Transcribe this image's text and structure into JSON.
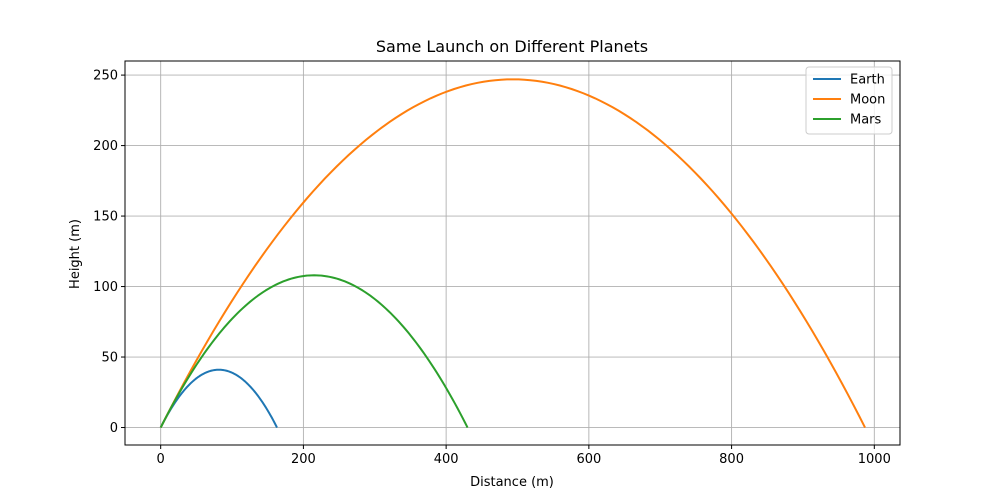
{
  "chart_data": {
    "type": "line",
    "title": "Same Launch on Different Planets",
    "xlabel": "Distance (m)",
    "ylabel": "Height (m)",
    "xlim": [
      -50,
      1036
    ],
    "ylim": [
      -12.4,
      260
    ],
    "xticks": [
      0,
      200,
      400,
      600,
      800,
      1000
    ],
    "yticks": [
      0,
      50,
      100,
      150,
      200,
      250
    ],
    "xtick_labels": [
      "0",
      "200",
      "400",
      "600",
      "800",
      "1000"
    ],
    "ytick_labels": [
      "0",
      "50",
      "100",
      "150",
      "200",
      "250"
    ],
    "grid": true,
    "legend_position": "top-right",
    "series": [
      {
        "name": "Earth",
        "color": "#1f77b4",
        "range": 163,
        "max_height": 41,
        "x": [
          0,
          20,
          40,
          60,
          81.5,
          100,
          120,
          140,
          163
        ],
        "y": [
          0,
          17.9,
          31.1,
          39.1,
          41,
          39.6,
          32.9,
          21.3,
          0
        ]
      },
      {
        "name": "Moon",
        "color": "#ff7f0e",
        "range": 987,
        "max_height": 247,
        "x": [
          0,
          100,
          200,
          300,
          400,
          493.5,
          600,
          700,
          800,
          900,
          987
        ],
        "y": [
          0,
          80.4,
          140.6,
          180.5,
          238.1,
          247,
          236.2,
          207.4,
          151.2,
          84.4,
          0
        ]
      },
      {
        "name": "Mars",
        "color": "#2ca02c",
        "range": 430,
        "max_height": 108,
        "x": [
          0,
          50,
          100,
          150,
          215,
          250,
          300,
          350,
          400,
          430
        ],
        "y": [
          0,
          44.8,
          80.7,
          99.6,
          108,
          105.3,
          90.6,
          56.4,
          24.6,
          0
        ]
      }
    ]
  }
}
